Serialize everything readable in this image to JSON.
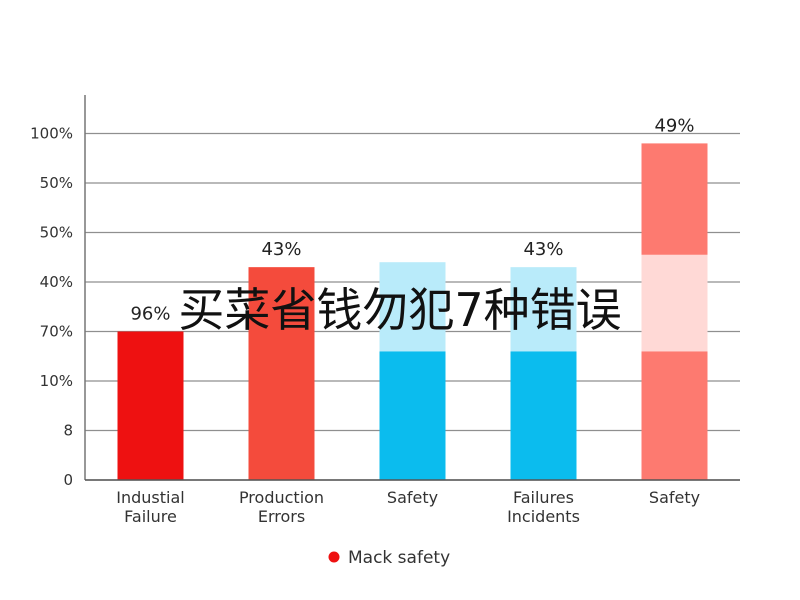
{
  "chart_data": {
    "type": "bar",
    "title": "",
    "xlabel": "",
    "ylabel": "",
    "grid": true,
    "legend_placement": "bottom",
    "categories": [
      "Industial\nFailure",
      "Production\nErrors",
      "Safety",
      "Failures\nIncidents",
      "Safety"
    ],
    "y_tick_labels": [
      "0",
      "8",
      "10%",
      "70%",
      "40%",
      "50%",
      "50%",
      "100%"
    ],
    "bar_levels": [
      3,
      4.3,
      4.4,
      4.3,
      6.8
    ],
    "segments": [
      [
        {
          "from": 0,
          "to": 3,
          "color": "#ee1111"
        }
      ],
      [
        {
          "from": 0,
          "to": 4.3,
          "color": "#f44b3c"
        }
      ],
      [
        {
          "from": 0,
          "to": 2.6,
          "color": "#0bbcee"
        },
        {
          "from": 2.6,
          "to": 4.4,
          "color": "#b9ebfa"
        }
      ],
      [
        {
          "from": 0,
          "to": 2.6,
          "color": "#0bbcee"
        },
        {
          "from": 2.6,
          "to": 4.3,
          "color": "#b9ebfa"
        }
      ],
      [
        {
          "from": 0,
          "to": 2.6,
          "color": "#fd7a70"
        },
        {
          "from": 2.6,
          "to": 4.55,
          "color": "#ffd9d6"
        },
        {
          "from": 4.55,
          "to": 6.8,
          "color": "#fd7a70"
        }
      ]
    ],
    "data_labels": [
      "96%",
      "43%",
      "",
      "43%",
      "49%"
    ],
    "legend": [
      {
        "label": "Mack safety",
        "color": "#ee1111"
      }
    ]
  },
  "overlay_text": "买菜省钱勿犯7种错误"
}
